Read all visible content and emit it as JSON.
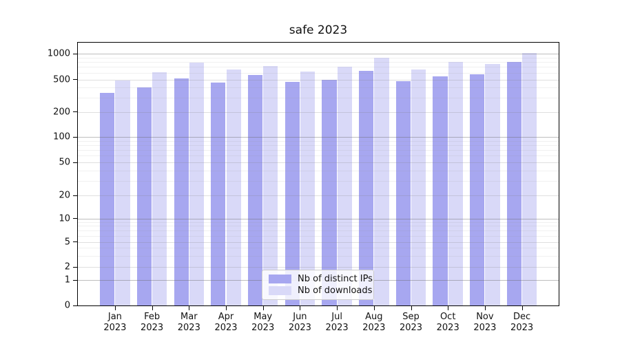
{
  "title": "safe 2023",
  "legend": {
    "items": [
      {
        "label": "Nb of distinct IPs",
        "color": "#a7a7f0"
      },
      {
        "label": "Nb of downloads",
        "color": "#d9d9f8"
      }
    ]
  },
  "y_axis": {
    "ticks": [
      {
        "label": "0",
        "value": 0
      },
      {
        "label": "1",
        "value": 1
      },
      {
        "label": "2",
        "value": 2
      },
      {
        "label": "5",
        "value": 5
      },
      {
        "label": "10",
        "value": 10
      },
      {
        "label": "20",
        "value": 20
      },
      {
        "label": "50",
        "value": 50
      },
      {
        "label": "100",
        "value": 100
      },
      {
        "label": "200",
        "value": 200
      },
      {
        "label": "500",
        "value": 500
      },
      {
        "label": "1000",
        "value": 1000
      }
    ]
  },
  "x_axis": {
    "labels": [
      {
        "month": "Jan",
        "year": "2023"
      },
      {
        "month": "Feb",
        "year": "2023"
      },
      {
        "month": "Mar",
        "year": "2023"
      },
      {
        "month": "Apr",
        "year": "2023"
      },
      {
        "month": "May",
        "year": "2023"
      },
      {
        "month": "Jun",
        "year": "2023"
      },
      {
        "month": "Jul",
        "year": "2023"
      },
      {
        "month": "Aug",
        "year": "2023"
      },
      {
        "month": "Sep",
        "year": "2023"
      },
      {
        "month": "Oct",
        "year": "2023"
      },
      {
        "month": "Nov",
        "year": "2023"
      },
      {
        "month": "Dec",
        "year": "2023"
      }
    ]
  },
  "chart_data": {
    "type": "bar",
    "title": "safe 2023",
    "categories": [
      "Jan 2023",
      "Feb 2023",
      "Mar 2023",
      "Apr 2023",
      "May 2023",
      "Jun 2023",
      "Jul 2023",
      "Aug 2023",
      "Sep 2023",
      "Oct 2023",
      "Nov 2023",
      "Dec 2023"
    ],
    "series": [
      {
        "name": "Nb of distinct IPs",
        "color": "#a7a7f0",
        "values": [
          342,
          396,
          517,
          456,
          565,
          470,
          492,
          630,
          476,
          544,
          575,
          807
        ]
      },
      {
        "name": "Nb of downloads",
        "color": "#d9d9f8",
        "values": [
          482,
          606,
          781,
          649,
          714,
          618,
          700,
          897,
          653,
          807,
          762,
          1010
        ]
      }
    ],
    "xlabel": "",
    "ylabel": "",
    "yscale": "symlog",
    "ylim": [
      0,
      1400
    ],
    "grid": true,
    "legend_position": "lower center"
  }
}
